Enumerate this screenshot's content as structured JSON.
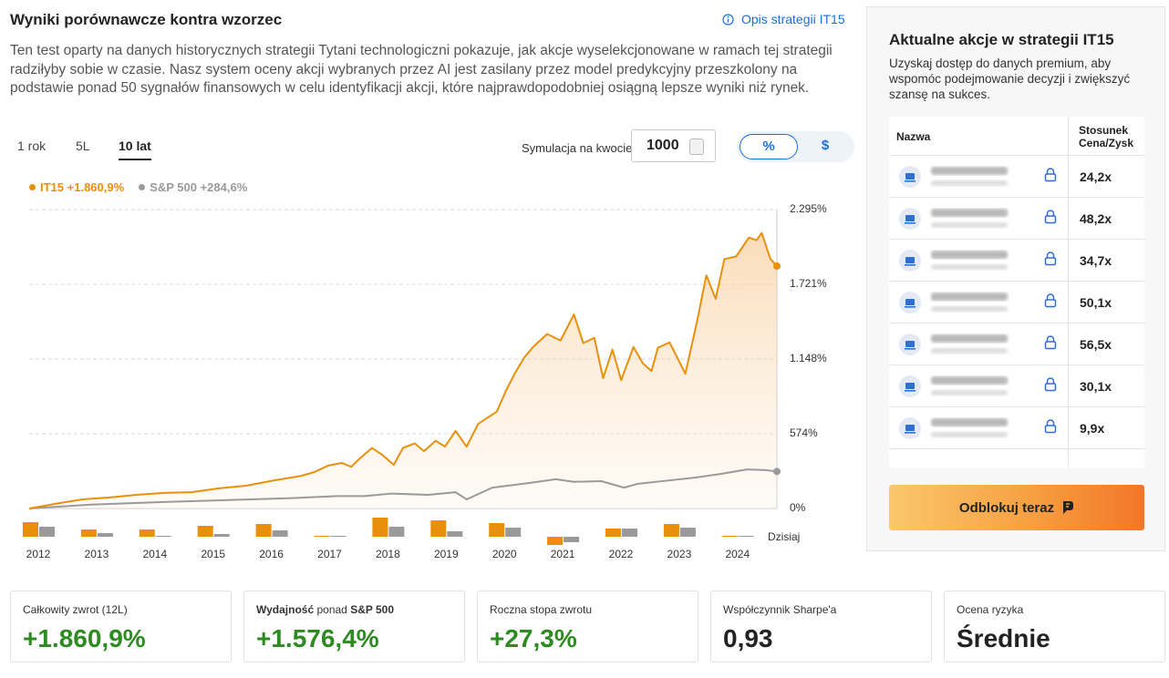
{
  "header": {
    "title": "Wyniki porównawcze kontra wzorzec",
    "link": "Opis strategii IT15",
    "description": "Ten test oparty na danych historycznych strategii Tytani technologiczni pokazuje, jak akcje wyselekcjonowane w ramach tej strategii radziłyby sobie w czasie. Nasz system oceny akcji wybranych przez AI jest zasilany przez model predykcyjny przeszkolony na podstawie ponad 50 sygnałów finansowych w celu identyfikacji akcji, które najprawdopodobniej osiągną lepsze wyniki niż rynek."
  },
  "tabs": [
    "1 rok",
    "5L",
    "10 lat"
  ],
  "active_tab": 2,
  "simulation": {
    "label": "Symulacja na kwocie",
    "amount": "1000",
    "modes": [
      "%",
      "$"
    ],
    "active_mode": 0
  },
  "chart_data": [
    {
      "type": "line",
      "xlim": [
        2011.84,
        2024.66
      ],
      "ylim": [
        0,
        2295
      ],
      "yticks": [
        {
          "value": 0,
          "label": "0%"
        },
        {
          "value": 574,
          "label": "574%"
        },
        {
          "value": 1148,
          "label": "1.148%"
        },
        {
          "value": 1721,
          "label": "1.721%"
        },
        {
          "value": 2295,
          "label": "2.295%"
        }
      ],
      "grid": true,
      "series": [
        {
          "name": "IT15",
          "total_label": "+1.860,9%",
          "color": "#e8900c",
          "x": [
            2011.84,
            2012.28,
            2012.75,
            2013.22,
            2013.68,
            2014.15,
            2014.62,
            2015.09,
            2015.56,
            2016.03,
            2016.5,
            2016.73,
            2016.97,
            2017.2,
            2017.36,
            2017.51,
            2017.72,
            2017.9,
            2018.09,
            2018.25,
            2018.45,
            2018.61,
            2018.81,
            2018.97,
            2019.15,
            2019.34,
            2019.54,
            2019.86,
            2020.01,
            2020.17,
            2020.33,
            2020.48,
            2020.72,
            2020.95,
            2021.18,
            2021.34,
            2021.53,
            2021.68,
            2021.84,
            2021.99,
            2022.2,
            2022.36,
            2022.51,
            2022.62,
            2022.82,
            2023.09,
            2023.29,
            2023.45,
            2023.61,
            2023.76,
            2023.96,
            2024.18,
            2024.31,
            2024.4,
            2024.55,
            2024.66
          ],
          "values": [
            0,
            35,
            70,
            85,
            105,
            120,
            125,
            155,
            175,
            215,
            250,
            280,
            330,
            350,
            320,
            385,
            465,
            410,
            335,
            465,
            500,
            440,
            520,
            475,
            595,
            475,
            650,
            745,
            900,
            1040,
            1160,
            1240,
            1340,
            1290,
            1490,
            1270,
            1310,
            1000,
            1220,
            985,
            1240,
            1115,
            1055,
            1235,
            1275,
            1035,
            1435,
            1790,
            1610,
            1915,
            1935,
            2080,
            2060,
            2115,
            1915,
            1860.9
          ]
        },
        {
          "name": "S&P 500",
          "total_label": "+284,6%",
          "color": "#9a9a9a",
          "x": [
            2011.84,
            2012.9,
            2014.15,
            2015.25,
            2016.34,
            2017.12,
            2017.59,
            2018.06,
            2018.68,
            2019.15,
            2019.34,
            2019.78,
            2020.4,
            2020.87,
            2021.18,
            2021.65,
            2022.04,
            2022.28,
            2022.9,
            2023.22,
            2023.69,
            2024.15,
            2024.47,
            2024.66
          ],
          "values": [
            0,
            30,
            50,
            65,
            80,
            95,
            95,
            115,
            105,
            125,
            70,
            160,
            195,
            225,
            205,
            210,
            160,
            190,
            220,
            235,
            265,
            300,
            295,
            284.6
          ]
        }
      ]
    },
    {
      "type": "bar",
      "categories": [
        "2012",
        "2013",
        "2014",
        "2015",
        "2016",
        "2017",
        "2018",
        "2019",
        "2020",
        "2021",
        "2022",
        "2023",
        "2024"
      ],
      "annotation": "Dzisiaj",
      "series": [
        {
          "name": "IT15",
          "color": "#e8900c",
          "values": [
            48,
            24,
            24,
            36,
            42,
            3,
            63,
            54,
            45,
            -27,
            27,
            42,
            3
          ]
        },
        {
          "name": "S&P 500",
          "color": "#9a9a9a",
          "values": [
            33,
            12,
            0,
            9,
            21,
            2,
            33,
            18,
            30,
            -18,
            27,
            30,
            3
          ]
        }
      ]
    }
  ],
  "panel": {
    "title": "Aktualne akcje w strategii IT15",
    "description": "Uzyskaj dostęp do danych premium, aby wspomóc podejmowanie decyzji i zwiększyć szansę na sukces.",
    "columns": [
      "Nazwa",
      "Stosunek Cena/Zysk"
    ],
    "pe": [
      "24,2x",
      "48,2x",
      "34,7x",
      "50,1x",
      "56,5x",
      "30,1x",
      "9,9x"
    ],
    "button": "Odblokuj teraz"
  },
  "cards": [
    {
      "label": "Całkowity zwrot (12L)",
      "value": "+1.860,9%"
    },
    {
      "label_parts": [
        "Wydajność",
        "ponad",
        "S&P 500"
      ],
      "value": "+1.576,4%"
    },
    {
      "label": "Roczna stopa zwrotu",
      "value": "+27,3%"
    },
    {
      "label": "Współczynnik Sharpe'a",
      "value": "0,93"
    },
    {
      "label": "Ocena ryzyka",
      "value": "Średnie"
    }
  ]
}
